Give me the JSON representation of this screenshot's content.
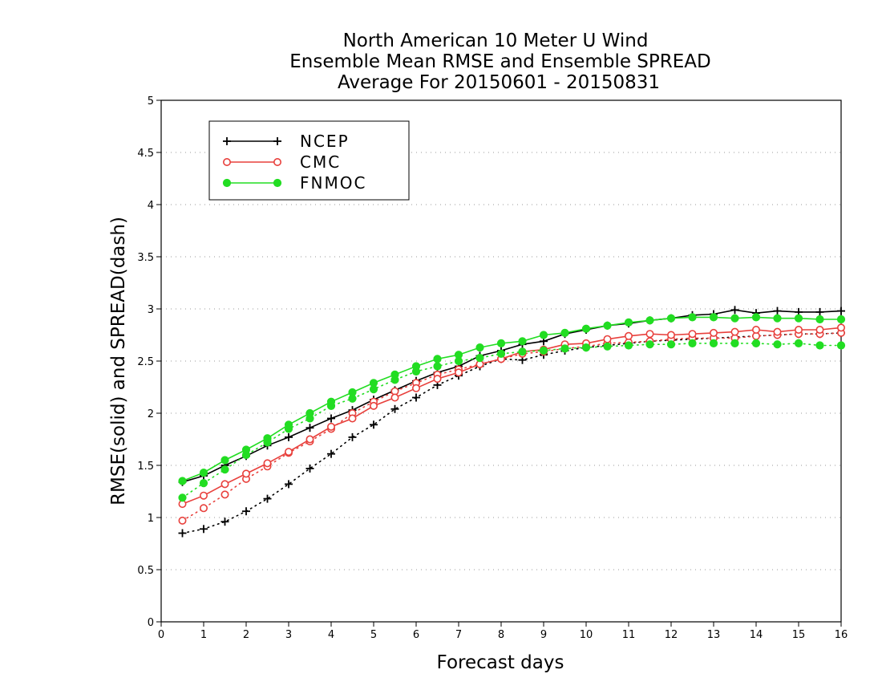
{
  "chart_data": {
    "type": "line",
    "title": [
      "North American 10 Meter U Wind",
      "Ensemble Mean RMSE and Ensemble SPREAD",
      "Average For 20150601 - 20150831"
    ],
    "xlabel": "Forecast days",
    "ylabel": "RMSE(solid) and SPREAD(dash)",
    "xlim": [
      0,
      16
    ],
    "ylim": [
      0,
      5
    ],
    "xticks": [
      "0",
      "1",
      "2",
      "3",
      "4",
      "5",
      "6",
      "7",
      "8",
      "9",
      "10",
      "11",
      "12",
      "13",
      "14",
      "15",
      "16"
    ],
    "yticks": [
      "0",
      "0.5",
      "1",
      "1.5",
      "2",
      "2.5",
      "3",
      "3.5",
      "4",
      "4.5",
      "5"
    ],
    "grid": true,
    "legend_position": "top-left",
    "x": [
      0.5,
      1,
      1.5,
      2,
      2.5,
      3,
      3.5,
      4,
      4.5,
      5,
      5.5,
      6,
      6.5,
      7,
      7.5,
      8,
      8.5,
      9,
      9.5,
      10,
      10.5,
      11,
      11.5,
      12,
      12.5,
      13,
      13.5,
      14,
      14.5,
      15,
      15.5,
      16
    ],
    "series": [
      {
        "name": "NCEP",
        "color": "#000000",
        "marker": "plus",
        "rmse": [
          1.34,
          1.4,
          1.5,
          1.59,
          1.69,
          1.77,
          1.86,
          1.95,
          2.03,
          2.13,
          2.22,
          2.31,
          2.39,
          2.45,
          2.55,
          2.6,
          2.66,
          2.69,
          2.76,
          2.8,
          2.84,
          2.86,
          2.89,
          2.91,
          2.94,
          2.95,
          2.99,
          2.96,
          2.98,
          2.97,
          2.97,
          2.98
        ],
        "spread": [
          0.85,
          0.89,
          0.96,
          1.06,
          1.18,
          1.32,
          1.47,
          1.61,
          1.77,
          1.89,
          2.04,
          2.15,
          2.27,
          2.36,
          2.45,
          2.52,
          2.51,
          2.56,
          2.6,
          2.63,
          2.65,
          2.67,
          2.69,
          2.7,
          2.71,
          2.72,
          2.73,
          2.74,
          2.75,
          2.76,
          2.76,
          2.77
        ]
      },
      {
        "name": "CMC",
        "color": "#e8403c",
        "marker": "open-circle",
        "rmse": [
          1.13,
          1.21,
          1.32,
          1.42,
          1.52,
          1.63,
          1.75,
          1.87,
          1.95,
          2.07,
          2.15,
          2.24,
          2.33,
          2.39,
          2.47,
          2.52,
          2.59,
          2.61,
          2.66,
          2.67,
          2.71,
          2.74,
          2.76,
          2.75,
          2.76,
          2.77,
          2.78,
          2.8,
          2.78,
          2.8,
          2.8,
          2.82
        ],
        "spread": [
          0.97,
          1.09,
          1.22,
          1.37,
          1.49,
          1.62,
          1.73,
          1.85,
          2.0,
          2.11,
          2.21,
          2.29,
          2.37,
          2.42,
          2.47,
          2.52,
          2.57,
          2.59,
          2.62,
          2.64,
          2.67,
          2.68,
          2.69,
          2.71,
          2.72,
          2.72,
          2.72,
          2.74,
          2.75,
          2.76,
          2.76,
          2.77
        ]
      },
      {
        "name": "FNMOC",
        "color": "#22dd22",
        "marker": "filled-circle",
        "rmse": [
          1.35,
          1.43,
          1.55,
          1.65,
          1.76,
          1.89,
          2.0,
          2.11,
          2.2,
          2.29,
          2.37,
          2.45,
          2.52,
          2.56,
          2.63,
          2.67,
          2.69,
          2.75,
          2.77,
          2.81,
          2.84,
          2.87,
          2.89,
          2.91,
          2.92,
          2.92,
          2.91,
          2.92,
          2.91,
          2.91,
          2.9,
          2.9
        ],
        "spread": [
          1.19,
          1.33,
          1.46,
          1.6,
          1.72,
          1.85,
          1.95,
          2.07,
          2.14,
          2.23,
          2.32,
          2.4,
          2.45,
          2.5,
          2.53,
          2.57,
          2.59,
          2.6,
          2.62,
          2.63,
          2.64,
          2.65,
          2.66,
          2.66,
          2.67,
          2.67,
          2.67,
          2.67,
          2.66,
          2.67,
          2.65,
          2.65
        ]
      }
    ]
  }
}
